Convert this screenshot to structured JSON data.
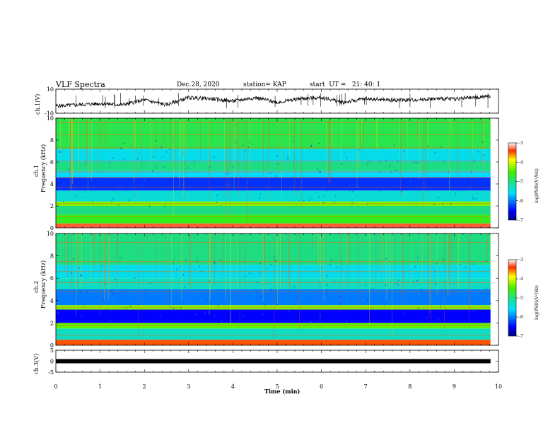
{
  "header": {
    "title": "VLF Spectra",
    "date": "Dec.28, 2020",
    "station": "station= KAP",
    "start": "start  UT =   21: 40: 1"
  },
  "chart_data": [
    {
      "type": "line",
      "id": "ch1-waveform",
      "ylabel": "ch.1(V)",
      "ylim": [
        -10,
        10
      ],
      "yticks": [
        "10",
        "-10"
      ],
      "xlim": [
        0,
        10
      ],
      "series": [
        {
          "x": [
            0,
            0.5,
            1,
            1.5,
            2,
            2.5,
            3,
            3.5,
            4,
            4.5,
            5,
            5.5,
            6,
            6.5,
            7,
            7.5,
            8,
            8.5,
            9,
            9.5,
            9.82
          ],
          "values": [
            -4,
            -3,
            -2,
            -3,
            1,
            -3,
            3,
            2,
            0,
            3,
            -1,
            2,
            3,
            -1,
            2,
            1,
            1,
            2,
            2,
            3,
            4
          ]
        }
      ]
    },
    {
      "type": "heatmap",
      "id": "ch1-spectrogram",
      "ylabel": "ch.1",
      "ylabel2": "Frequency (kHz)",
      "xlim": [
        0,
        10
      ],
      "ylim": [
        0,
        10
      ],
      "yticks": [
        "0",
        "2",
        "4",
        "6",
        "8",
        "10"
      ],
      "data_xmax": 9.82,
      "bands": [
        {
          "f": [
            0.0,
            0.4
          ],
          "v": -3.3
        },
        {
          "f": [
            0.4,
            1.2
          ],
          "v": -4.6
        },
        {
          "f": [
            1.2,
            2.0
          ],
          "v": -5.0
        },
        {
          "f": [
            2.0,
            2.4
          ],
          "v": -4.3
        },
        {
          "f": [
            2.4,
            3.4
          ],
          "v": -5.4
        },
        {
          "f": [
            3.4,
            4.6
          ],
          "v": -6.3
        },
        {
          "f": [
            4.6,
            5.2
          ],
          "v": -5.6
        },
        {
          "f": [
            5.2,
            6.0
          ],
          "v": -5.0
        },
        {
          "f": [
            6.0,
            7.2
          ],
          "v": -5.5
        },
        {
          "f": [
            7.2,
            10.0
          ],
          "v": -4.8
        }
      ],
      "lines": [
        0.3,
        1.0,
        2.2,
        3.7,
        4.6,
        5.1,
        6.1,
        7.3,
        8.5,
        9.6
      ],
      "colorbar": {
        "label": "log(PSD)(V²/Hz)",
        "range": [
          -7,
          -3
        ],
        "ticks": [
          "-3",
          "-4",
          "-5",
          "-6",
          "-7"
        ]
      }
    },
    {
      "type": "heatmap",
      "id": "ch2-spectrogram",
      "ylabel": "ch.2",
      "ylabel2": "Frequency (kHz)",
      "xlim": [
        0,
        10
      ],
      "ylim": [
        0,
        10
      ],
      "yticks": [
        "0",
        "2",
        "4",
        "6",
        "8",
        "10"
      ],
      "data_xmax": 9.82,
      "bands": [
        {
          "f": [
            0.0,
            0.5
          ],
          "v": -3.5
        },
        {
          "f": [
            0.5,
            1.5
          ],
          "v": -5.3
        },
        {
          "f": [
            1.5,
            2.0
          ],
          "v": -4.4
        },
        {
          "f": [
            2.0,
            3.2
          ],
          "v": -6.5
        },
        {
          "f": [
            3.2,
            3.6
          ],
          "v": -4.3
        },
        {
          "f": [
            3.6,
            5.0
          ],
          "v": -6.0
        },
        {
          "f": [
            5.0,
            6.0
          ],
          "v": -5.3
        },
        {
          "f": [
            6.0,
            7.2
          ],
          "v": -5.5
        },
        {
          "f": [
            7.2,
            10.0
          ],
          "v": -5.0
        }
      ],
      "lines": [
        0.2,
        0.9,
        1.8,
        3.4,
        4.8,
        5.6,
        6.6,
        7.5,
        9.2
      ],
      "colorbar": {
        "label": "log(PSD)(V²/Hz)",
        "range": [
          -7,
          -3
        ],
        "ticks": [
          "-3",
          "-4",
          "-5",
          "-6",
          "-7"
        ]
      }
    },
    {
      "type": "line",
      "id": "ch3-signal",
      "ylabel": "ch.3(V)",
      "ylim": [
        -5,
        5
      ],
      "yticks": [
        "5",
        "0",
        "-5"
      ],
      "xlim": [
        0,
        10
      ],
      "series": [
        {
          "x": [
            0,
            9.82
          ],
          "values": [
            0,
            0
          ]
        }
      ]
    }
  ],
  "xaxis": {
    "label": "Time (min)",
    "ticks": [
      "0",
      "1",
      "2",
      "3",
      "4",
      "5",
      "6",
      "7",
      "8",
      "9",
      "10"
    ]
  }
}
